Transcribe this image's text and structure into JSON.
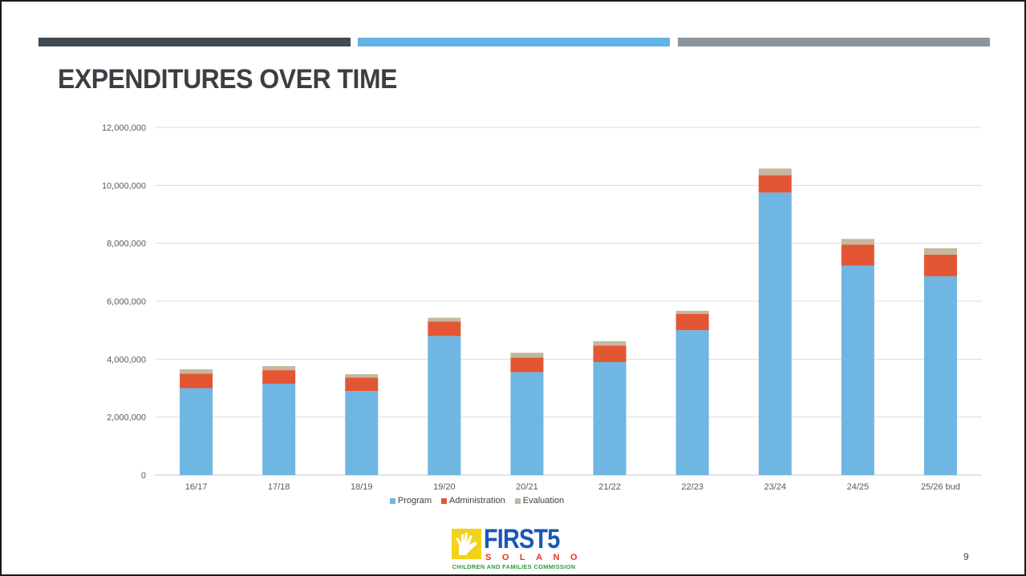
{
  "slide": {
    "title": "EXPENDITURES OVER TIME",
    "page_number": "9",
    "strip_colors": [
      "#3f4a52",
      "#63b3e4",
      "#8b959e"
    ]
  },
  "logo": {
    "word": "FIRST5",
    "sub": "SOLANO",
    "tagline": "CHILDREN AND FAMILIES COMMISSION",
    "colors": {
      "hand": "#f2d21a",
      "word": "#1a57b5",
      "sub": "#e8301e",
      "tag": "#2b9b3a"
    }
  },
  "chart_data": {
    "type": "bar",
    "stacked": true,
    "categories": [
      "16/17",
      "17/18",
      "18/19",
      "19/20",
      "20/21",
      "21/22",
      "22/23",
      "23/24",
      "24/25",
      "25/26 bud"
    ],
    "series": [
      {
        "name": "Program",
        "color": "#6fb6e2",
        "values": [
          3000000,
          3150000,
          2900000,
          4800000,
          3550000,
          3900000,
          5000000,
          9750000,
          7230000,
          6860000
        ]
      },
      {
        "name": "Administration",
        "color": "#e35634",
        "values": [
          500000,
          470000,
          460000,
          500000,
          500000,
          570000,
          560000,
          600000,
          720000,
          750000
        ]
      },
      {
        "name": "Evaluation",
        "color": "#c4b79e",
        "values": [
          150000,
          140000,
          120000,
          130000,
          170000,
          150000,
          110000,
          230000,
          200000,
          220000
        ]
      }
    ],
    "ylim": [
      0,
      12000000
    ],
    "yticks": [
      0,
      2000000,
      4000000,
      6000000,
      8000000,
      10000000,
      12000000
    ],
    "ytick_labels": [
      "0",
      "2,000,000",
      "4,000,000",
      "6,000,000",
      "8,000,000",
      "10,000,000",
      "12,000,000"
    ],
    "grid": true,
    "legend_position": "bottom",
    "xlabel": "",
    "ylabel": ""
  }
}
